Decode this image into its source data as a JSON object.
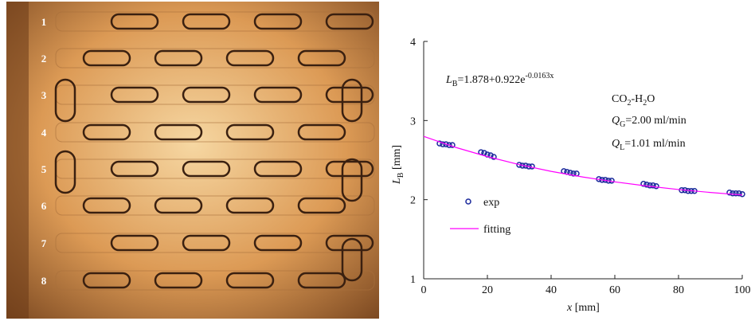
{
  "photo": {
    "channel_labels": [
      "1",
      "2",
      "3",
      "4",
      "5",
      "6",
      "7",
      "8"
    ]
  },
  "chart_data": {
    "type": "scatter",
    "x_label": {
      "main": "x",
      "unit": " [mm]"
    },
    "y_label": {
      "main": "L",
      "sub": "B",
      "unit": " [mm]"
    },
    "xlim": [
      0,
      100
    ],
    "xticks": [
      0,
      20,
      40,
      60,
      80,
      100
    ],
    "ylim": [
      1,
      4
    ],
    "yticks": [
      1,
      2,
      3,
      4
    ],
    "legend": "left",
    "annotations": {
      "equation": {
        "lhs": "L",
        "sub": "B",
        "rhs": "=1.878+0.922e",
        "sup": "-0.0163x"
      },
      "system": {
        "a": "CO",
        "a_sub": "2",
        "b": "-H",
        "b_sub": "2",
        "c": "O"
      },
      "gas_flow": {
        "main": "Q",
        "sub": "G",
        "rest": "=2.00 ml/min"
      },
      "liquid_flow": {
        "main": "Q",
        "sub": "L",
        "rest": "=1.01 ml/min"
      }
    },
    "series": [
      {
        "name": "exp",
        "mode": "markers",
        "color": "#1c2a9c",
        "x": [
          5,
          6,
          7,
          8,
          9,
          18,
          19,
          20,
          21,
          22,
          30,
          31,
          32,
          33,
          34,
          44,
          45,
          46,
          47,
          48,
          55,
          56,
          57,
          58,
          59,
          69,
          70,
          71,
          72,
          73,
          81,
          82,
          83,
          84,
          85,
          96,
          97,
          98,
          99,
          100
        ],
        "values": [
          2.71,
          2.7,
          2.7,
          2.69,
          2.69,
          2.6,
          2.59,
          2.57,
          2.56,
          2.54,
          2.44,
          2.43,
          2.43,
          2.42,
          2.42,
          2.36,
          2.35,
          2.34,
          2.33,
          2.33,
          2.26,
          2.25,
          2.25,
          2.24,
          2.24,
          2.2,
          2.19,
          2.18,
          2.18,
          2.17,
          2.12,
          2.12,
          2.11,
          2.11,
          2.11,
          2.09,
          2.08,
          2.08,
          2.08,
          2.07
        ]
      },
      {
        "name": "fitting",
        "mode": "line",
        "color": "#ff00ff",
        "x": [
          0,
          10,
          20,
          30,
          40,
          50,
          60,
          70,
          80,
          90,
          100
        ],
        "values": [
          2.8,
          2.661,
          2.544,
          2.443,
          2.358,
          2.286,
          2.225,
          2.173,
          2.128,
          2.091,
          2.059
        ]
      }
    ]
  }
}
